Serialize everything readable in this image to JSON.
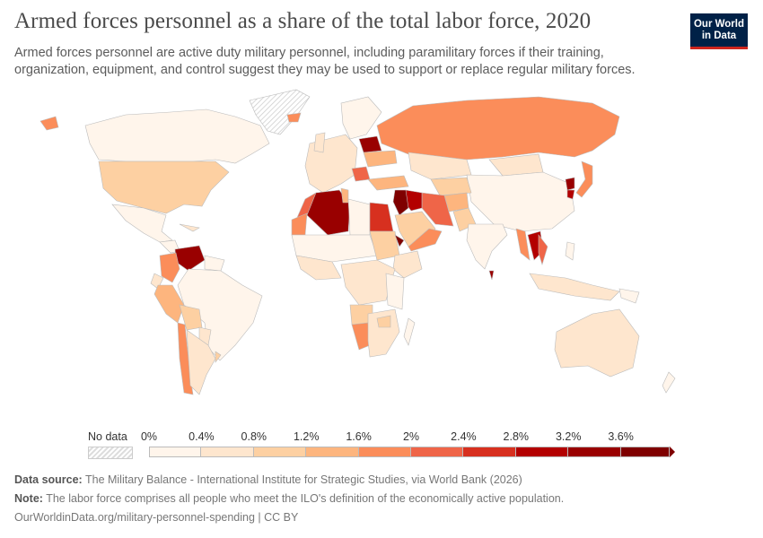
{
  "header": {
    "title": "Armed forces personnel as a share of the total labor force, 2020",
    "subtitle": "Armed forces personnel are active duty military personnel, including paramilitary forces if their training, organization, equipment, and control suggest they may be used to support or replace regular military forces.",
    "logo_line1": "Our World",
    "logo_line2": "in Data"
  },
  "chart_data": {
    "type": "choropleth",
    "title": "Armed forces personnel as a share of the total labor force, 2020",
    "year": 2020,
    "legend": {
      "placement": "bottom",
      "no_data_label": "No data",
      "tick_labels": [
        "0%",
        "0.4%",
        "0.8%",
        "1.2%",
        "1.6%",
        "2%",
        "2.4%",
        "2.8%",
        "3.2%",
        "3.6%"
      ],
      "bins": [
        0,
        0.4,
        0.8,
        1.2,
        1.6,
        2,
        2.4,
        2.8,
        3.2,
        3.6,
        4
      ],
      "colors": [
        "#fff5eb",
        "#fee6ce",
        "#fdd0a2",
        "#fdb57e",
        "#fb8d5a",
        "#ef6548",
        "#d7301f",
        "#b30000",
        "#990000",
        "#7f0000"
      ],
      "open_ended": true
    }
  },
  "footer": {
    "source_label": "Data source:",
    "source": "The Military Balance - International Institute for Strategic Studies, via World Bank (2026)",
    "note_label": "Note:",
    "note": "The labor force comprises all people who meet the ILO's definition of the economically active population.",
    "url": "OurWorldinData.org/military-personnel-spending | CC BY"
  }
}
